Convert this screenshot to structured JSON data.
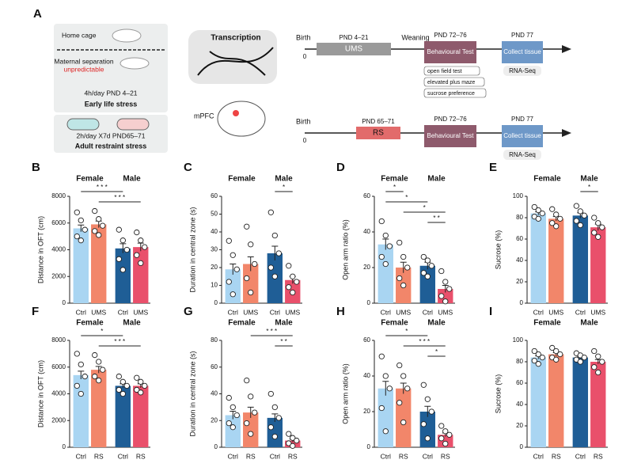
{
  "panel_label": "A",
  "panel_a": {
    "home_cage": "Home cage",
    "maternal_separation": "Maternal separation",
    "unpredictable": "unpredictable",
    "ums_schedule": "4h/day  PND 4–21",
    "early_life_stress": "Early life stress",
    "rs_schedule": "2h/day  X7d  PND65–71",
    "adult_restraint_stress": "Adult restraint stress",
    "transcription": "Transcription",
    "mpfc": "mPFC",
    "timeline1": {
      "birth": "Birth",
      "zero": "0",
      "pnd_stress": "PND 4–21",
      "stress": "UMS",
      "weaning": "Weaning",
      "pnd_test": "PND 72–76",
      "test": "Behavioural Test",
      "pnd_collect": "PND 77",
      "collect": "Collect tissue",
      "rna": "RNA-Seq",
      "tests": [
        "open field test",
        "elevated plus maze",
        "sucrose preference"
      ]
    },
    "timeline2": {
      "birth": "Birth",
      "zero": "0",
      "pnd_stress": "PND 65–71",
      "stress": "RS",
      "pnd_test": "PND 72–76",
      "test": "Behavioural Test",
      "pnd_collect": "PND 77",
      "collect": "Collect tissue",
      "rna": "RNA-Seq"
    }
  },
  "charts": [
    {
      "type": "bar",
      "label": "B",
      "ylabel": "Distance in OFT (cm)",
      "groups": [
        "Female",
        "Male"
      ],
      "categories": [
        "Ctrl",
        "UMS",
        "Ctrl",
        "UMS"
      ],
      "colors": [
        "#a9d5f2",
        "#f2866a",
        "#1f5e96",
        "#e9506b"
      ],
      "values": [
        5600,
        5900,
        4100,
        4200
      ],
      "errors": [
        250,
        250,
        350,
        300
      ],
      "points": [
        [
          6800,
          6200,
          5500,
          5000,
          4700
        ],
        [
          6900,
          6300,
          5800,
          5400,
          5100
        ],
        [
          5500,
          4700,
          4000,
          3300,
          2500
        ],
        [
          5300,
          4700,
          4200,
          3600,
          3000
        ]
      ],
      "ylim": [
        0,
        8000
      ],
      "yticks": [
        0,
        2000,
        4000,
        6000,
        8000
      ],
      "significance": [
        {
          "from": 0,
          "to": 2,
          "label": "* * *"
        },
        {
          "from": 1,
          "to": 3,
          "label": "* * *"
        }
      ]
    },
    {
      "type": "bar",
      "label": "C",
      "ylabel": "Duration in central zone (s)",
      "groups": [
        "Female",
        "Male"
      ],
      "categories": [
        "Ctrl",
        "UMS",
        "Ctrl",
        "UMS"
      ],
      "colors": [
        "#a9d5f2",
        "#f2866a",
        "#1f5e96",
        "#e9506b"
      ],
      "values": [
        19,
        22,
        28,
        13
      ],
      "errors": [
        3,
        4,
        4,
        2
      ],
      "points": [
        [
          35,
          27,
          19,
          12,
          5
        ],
        [
          43,
          33,
          22,
          14,
          6
        ],
        [
          51,
          38,
          28,
          20,
          15
        ],
        [
          21,
          15,
          12,
          9,
          6
        ]
      ],
      "ylim": [
        0,
        60
      ],
      "yticks": [
        0,
        10,
        20,
        30,
        40,
        50,
        60
      ],
      "significance": [
        {
          "from": 2,
          "to": 3,
          "label": "*"
        }
      ]
    },
    {
      "type": "bar",
      "label": "D",
      "ylabel": "Open arm ratio (%)",
      "groups": [
        "Female",
        "Male"
      ],
      "categories": [
        "Ctrl",
        "UMS",
        "Ctrl",
        "UMS"
      ],
      "colors": [
        "#a9d5f2",
        "#f2866a",
        "#1f5e96",
        "#e9506b"
      ],
      "values": [
        33,
        20,
        21,
        8
      ],
      "errors": [
        3,
        3,
        2,
        2
      ],
      "points": [
        [
          46,
          38,
          32,
          26,
          22
        ],
        [
          34,
          26,
          20,
          14,
          10
        ],
        [
          26,
          24,
          21,
          17,
          15
        ],
        [
          18,
          12,
          8,
          4,
          1
        ]
      ],
      "ylim": [
        0,
        60
      ],
      "yticks": [
        0,
        20,
        40,
        60
      ],
      "significance": [
        {
          "from": 0,
          "to": 1,
          "label": "*"
        },
        {
          "from": 0,
          "to": 2,
          "label": "*"
        },
        {
          "from": 1,
          "to": 3,
          "label": "*"
        },
        {
          "from": 2,
          "to": 3,
          "label": "* *"
        }
      ]
    },
    {
      "type": "bar",
      "label": "E",
      "ylabel": "Sucrose (%)",
      "groups": [
        "Female",
        "Male"
      ],
      "categories": [
        "Ctrl",
        "UMS",
        "Ctrl",
        "UMS"
      ],
      "colors": [
        "#a9d5f2",
        "#f2866a",
        "#1f5e96",
        "#e9506b"
      ],
      "values": [
        84,
        79,
        82,
        71
      ],
      "errors": [
        1.5,
        2,
        2.5,
        3
      ],
      "points": [
        [
          90,
          87,
          84,
          81,
          79
        ],
        [
          88,
          83,
          79,
          75,
          72
        ],
        [
          91,
          86,
          82,
          77,
          73
        ],
        [
          80,
          75,
          71,
          66,
          62
        ]
      ],
      "ylim": [
        0,
        100
      ],
      "yticks": [
        0,
        20,
        40,
        60,
        80,
        100
      ],
      "significance": [
        {
          "from": 2,
          "to": 3,
          "label": "*"
        }
      ]
    },
    {
      "type": "bar",
      "label": "F",
      "ylabel": "Distance in OFT (cm)",
      "groups": [
        "Female",
        "Male"
      ],
      "categories": [
        "Ctrl",
        "RS",
        "Ctrl",
        "RS"
      ],
      "colors": [
        "#a9d5f2",
        "#f2866a",
        "#1f5e96",
        "#e9506b"
      ],
      "values": [
        5400,
        5800,
        4600,
        4600
      ],
      "errors": [
        300,
        250,
        150,
        150
      ],
      "points": [
        [
          7000,
          6200,
          5300,
          4600,
          4000
        ],
        [
          6900,
          6400,
          5800,
          5300,
          5000
        ],
        [
          5300,
          4900,
          4600,
          4300,
          4000
        ],
        [
          5200,
          4900,
          4600,
          4300,
          4100
        ]
      ],
      "ylim": [
        0,
        8000
      ],
      "yticks": [
        0,
        2000,
        4000,
        6000,
        8000
      ],
      "significance": [
        {
          "from": 0,
          "to": 2,
          "label": "*"
        },
        {
          "from": 1,
          "to": 3,
          "label": "* * *"
        }
      ]
    },
    {
      "type": "bar",
      "label": "G",
      "ylabel": "Duration in central zone (s)",
      "groups": [
        "Female",
        "Male"
      ],
      "categories": [
        "Ctrl",
        "RS",
        "Ctrl",
        "RS"
      ],
      "colors": [
        "#a9d5f2",
        "#f2866a",
        "#1f5e96",
        "#e9506b"
      ],
      "values": [
        24,
        26,
        22,
        5
      ],
      "errors": [
        3,
        4,
        3,
        1
      ],
      "points": [
        [
          37,
          30,
          24,
          18,
          15
        ],
        [
          50,
          38,
          26,
          18,
          10
        ],
        [
          40,
          30,
          22,
          15,
          8
        ],
        [
          10,
          7,
          5,
          3,
          1
        ]
      ],
      "ylim": [
        0,
        80
      ],
      "yticks": [
        0,
        20,
        40,
        60,
        80
      ],
      "significance": [
        {
          "from": 1,
          "to": 3,
          "label": "* * *"
        },
        {
          "from": 2,
          "to": 3,
          "label": "* *"
        }
      ]
    },
    {
      "type": "bar",
      "label": "H",
      "ylabel": "Open arm ratio (%)",
      "groups": [
        "Female",
        "Male"
      ],
      "categories": [
        "Ctrl",
        "RS",
        "Ctrl",
        "RS"
      ],
      "colors": [
        "#a9d5f2",
        "#f2866a",
        "#1f5e96",
        "#e9506b"
      ],
      "values": [
        33,
        33,
        20,
        7
      ],
      "errors": [
        4,
        3,
        3,
        1
      ],
      "points": [
        [
          51,
          40,
          33,
          22,
          9
        ],
        [
          46,
          40,
          33,
          25,
          14
        ],
        [
          35,
          27,
          20,
          13,
          5
        ],
        [
          12,
          9,
          7,
          5,
          2
        ]
      ],
      "ylim": [
        0,
        60
      ],
      "yticks": [
        0,
        20,
        40,
        60
      ],
      "significance": [
        {
          "from": 0,
          "to": 2,
          "label": "*"
        },
        {
          "from": 1,
          "to": 3,
          "label": "* * *"
        },
        {
          "from": 2,
          "to": 3,
          "label": "*"
        }
      ]
    },
    {
      "type": "bar",
      "label": "I",
      "ylabel": "Sucrose (%)",
      "groups": [
        "Female",
        "Male"
      ],
      "categories": [
        "Ctrl",
        "RS",
        "Ctrl",
        "RS"
      ],
      "colors": [
        "#a9d5f2",
        "#f2866a",
        "#1f5e96",
        "#e9506b"
      ],
      "values": [
        84,
        87,
        84,
        80
      ],
      "errors": [
        1.5,
        1.5,
        1,
        2
      ],
      "points": [
        [
          90,
          87,
          84,
          81,
          78
        ],
        [
          93,
          90,
          87,
          84,
          82
        ],
        [
          88,
          86,
          84,
          82,
          80
        ],
        [
          90,
          85,
          80,
          75,
          70
        ]
      ],
      "ylim": [
        0,
        100
      ],
      "yticks": [
        0,
        20,
        40,
        60,
        80,
        100
      ],
      "significance": []
    }
  ]
}
